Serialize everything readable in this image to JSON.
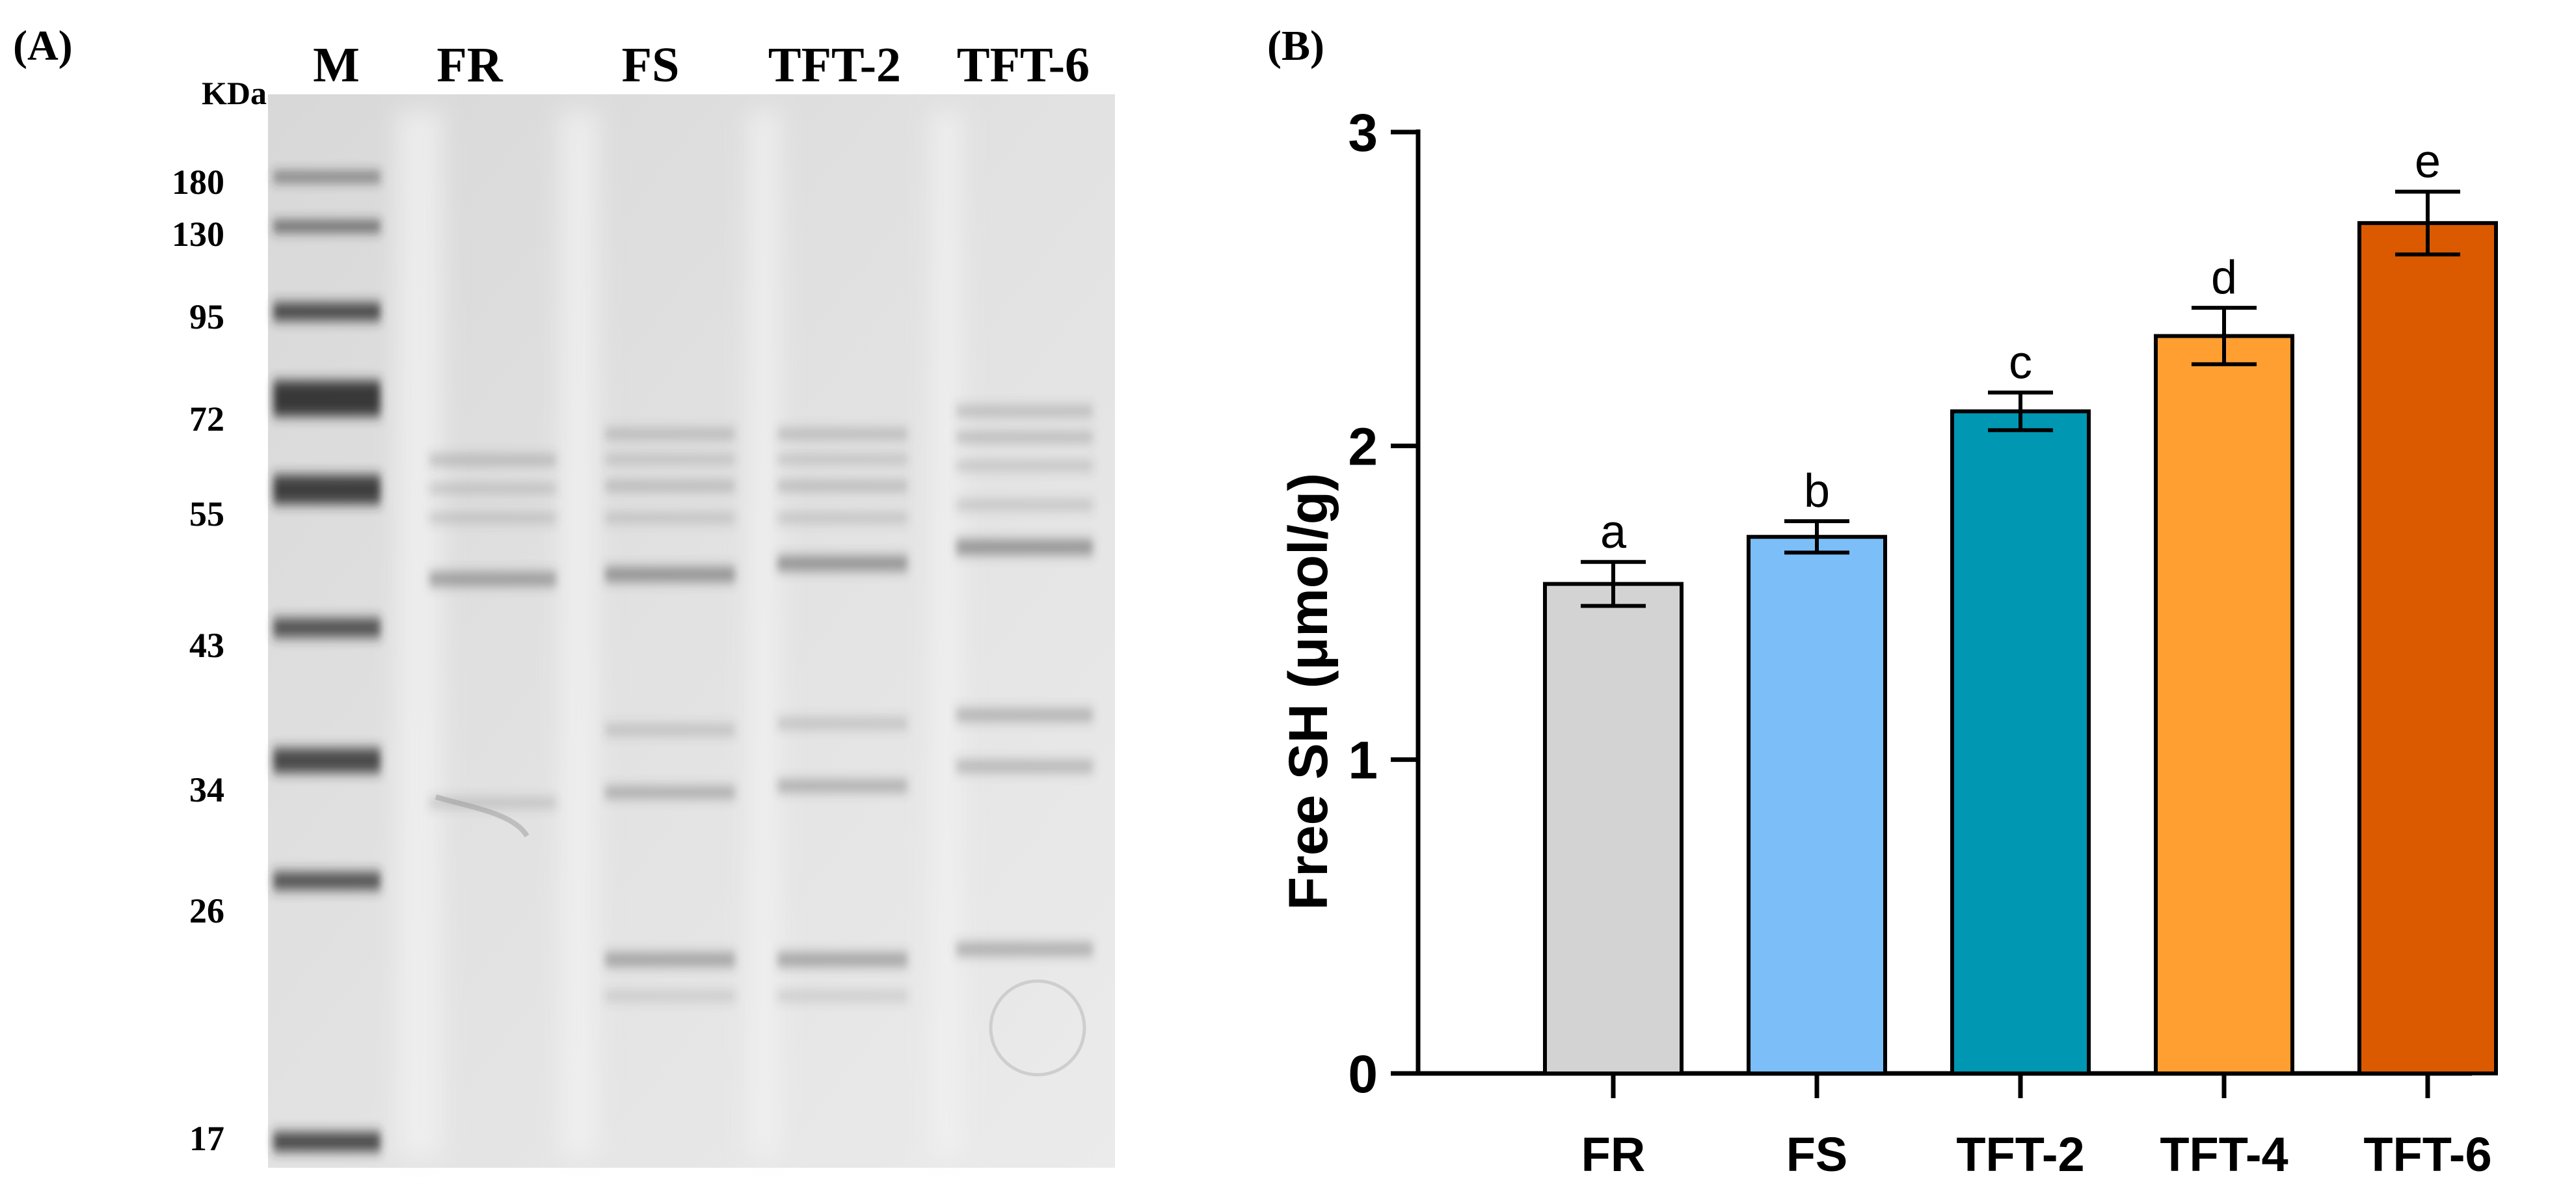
{
  "panel_a": {
    "label": "(A)",
    "unit_label": "KDa",
    "lanes": [
      "M",
      "FR",
      "FS",
      "TFT-2",
      "TFT-6"
    ],
    "marker_weights": [
      "180",
      "130",
      "95",
      "72",
      "55",
      "43",
      "34",
      "26",
      "17"
    ]
  },
  "panel_b": {
    "label": "(B)"
  },
  "chart_data": {
    "type": "bar",
    "title": "",
    "xlabel": "",
    "ylabel": "Free SH (μmol/g)",
    "ylim": [
      0,
      3
    ],
    "yticks": [
      "0",
      "1",
      "2",
      "3"
    ],
    "grid": false,
    "categories": [
      "FR",
      "FS",
      "TFT-2",
      "TFT-4",
      "TFT-6"
    ],
    "values": [
      1.56,
      1.71,
      2.11,
      2.35,
      2.71
    ],
    "errors": [
      0.07,
      0.05,
      0.06,
      0.09,
      0.1
    ],
    "significance": [
      "a",
      "b",
      "c",
      "d",
      "e"
    ],
    "colors": [
      "#d3d3d3",
      "#7bbef8",
      "#0097b2",
      "#ff9e31",
      "#db5a00"
    ]
  }
}
